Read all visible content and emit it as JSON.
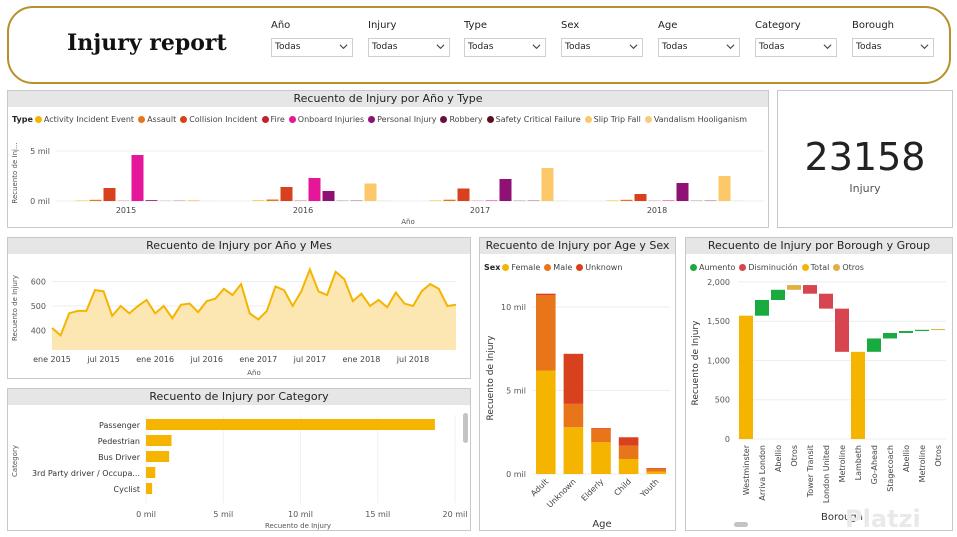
{
  "header": {
    "title": "Injury report",
    "filters": [
      {
        "label": "Año",
        "value": "Todas"
      },
      {
        "label": "Injury",
        "value": "Todas"
      },
      {
        "label": "Type",
        "value": "Todas"
      },
      {
        "label": "Sex",
        "value": "Todas"
      },
      {
        "label": "Age",
        "value": "Todas"
      },
      {
        "label": "Category",
        "value": "Todas"
      },
      {
        "label": "Borough",
        "value": "Todas"
      }
    ]
  },
  "kpi": {
    "value": "23158",
    "label": "Injury"
  },
  "watermark": "Platzi",
  "chart_data": [
    {
      "id": "by-year-type",
      "type": "bar",
      "title": "Recuento de Injury por Año y Type",
      "legend_title": "Type",
      "xlabel": "Año",
      "ylabel": "Recuento de Inj...",
      "ylim": [
        0,
        5600
      ],
      "yticks": [
        {
          "v": 0,
          "label": "0 mil"
        },
        {
          "v": 5000,
          "label": "5 mil"
        }
      ],
      "categories": [
        "2015",
        "2016",
        "2017",
        "2018"
      ],
      "series": [
        {
          "name": "Activity Incident Event",
          "color": "#f4b400",
          "values": [
            40,
            60,
            45,
            45
          ]
        },
        {
          "name": "Assault",
          "color": "#e8751a",
          "values": [
            120,
            150,
            130,
            120
          ]
        },
        {
          "name": "Collision Incident",
          "color": "#d9411e",
          "values": [
            1300,
            1400,
            1250,
            700
          ]
        },
        {
          "name": "Fire",
          "color": "#c81d2f",
          "values": [
            20,
            30,
            20,
            20
          ]
        },
        {
          "name": "Onboard Injuries",
          "color": "#e6169a",
          "values": [
            4600,
            2300,
            50,
            50
          ]
        },
        {
          "name": "Personal Injury",
          "color": "#8e1173",
          "values": [
            80,
            1000,
            2200,
            1800
          ]
        },
        {
          "name": "Robbery",
          "color": "#6b0f3a",
          "values": [
            10,
            20,
            20,
            20
          ]
        },
        {
          "name": "Safety Critical Failure",
          "color": "#5a0f1e",
          "values": [
            20,
            30,
            30,
            30
          ]
        },
        {
          "name": "Slip Trip Fall",
          "color": "#fcc86a",
          "values": [
            80,
            1750,
            3300,
            2500
          ]
        },
        {
          "name": "Vandalism Hooliganism",
          "color": "#fbc97e",
          "values": [
            10,
            20,
            20,
            20
          ]
        }
      ]
    },
    {
      "id": "by-month",
      "type": "area",
      "title": "Recuento de Injury por Año y Mes",
      "xlabel": "Año",
      "ylabel": "Recuento de Injury",
      "ylim": [
        320,
        680
      ],
      "yticks": [
        400,
        500,
        600
      ],
      "xticks": [
        {
          "i": 0,
          "label": "ene 2015"
        },
        {
          "i": 6,
          "label": "jul 2015"
        },
        {
          "i": 12,
          "label": "ene 2016"
        },
        {
          "i": 18,
          "label": "jul 2016"
        },
        {
          "i": 24,
          "label": "ene 2017"
        },
        {
          "i": 30,
          "label": "jul 2017"
        },
        {
          "i": 36,
          "label": "ene 2018"
        },
        {
          "i": 42,
          "label": "jul 2018"
        }
      ],
      "color": "#f4b400",
      "values": [
        410,
        380,
        470,
        480,
        480,
        565,
        560,
        460,
        500,
        470,
        500,
        525,
        470,
        500,
        450,
        505,
        510,
        475,
        520,
        530,
        570,
        545,
        590,
        470,
        445,
        480,
        580,
        565,
        500,
        560,
        650,
        560,
        545,
        640,
        610,
        520,
        550,
        500,
        525,
        495,
        555,
        510,
        500,
        560,
        590,
        570,
        500,
        505
      ]
    },
    {
      "id": "by-category",
      "type": "bar",
      "orientation": "horizontal",
      "title": "Recuento de Injury por Category",
      "xlabel": "Recuento de Injury",
      "ylabel": "Category",
      "xlim": [
        0,
        20000
      ],
      "xticks": [
        {
          "v": 0,
          "label": "0 mil"
        },
        {
          "v": 5000,
          "label": "5 mil"
        },
        {
          "v": 10000,
          "label": "10 mil"
        },
        {
          "v": 15000,
          "label": "15 mil"
        },
        {
          "v": 20000,
          "label": "20 mil"
        }
      ],
      "categories": [
        "Passenger",
        "Pedestrian",
        "Bus Driver",
        "3rd Party driver / Occupa...",
        "Cyclist"
      ],
      "values": [
        18700,
        1650,
        1500,
        600,
        400
      ],
      "color": "#f4b400"
    },
    {
      "id": "by-age-sex",
      "type": "bar",
      "stacked": true,
      "title": "Recuento de Injury por Age y Sex",
      "legend_title": "Sex",
      "xlabel": "Age",
      "ylabel": "Recuento de Injury",
      "ylim": [
        0,
        11500
      ],
      "yticks": [
        {
          "v": 0,
          "label": "0 mil"
        },
        {
          "v": 5000,
          "label": "5 mil"
        },
        {
          "v": 10000,
          "label": "10 mil"
        }
      ],
      "categories": [
        "Adult",
        "Unknown",
        "Elderly",
        "Child",
        "Youth"
      ],
      "series": [
        {
          "name": "Female",
          "color": "#f4b400",
          "values": [
            6200,
            2800,
            1900,
            900,
            150
          ]
        },
        {
          "name": "Male",
          "color": "#e8751a",
          "values": [
            4500,
            1400,
            800,
            800,
            150
          ]
        },
        {
          "name": "Unknown",
          "color": "#d9411e",
          "values": [
            100,
            3000,
            50,
            500,
            50
          ]
        }
      ]
    },
    {
      "id": "by-borough",
      "type": "waterfall",
      "title": "Recuento de Injury por Borough y Group",
      "xlabel": "Borough",
      "ylabel": "Recuento de Injury",
      "ylim": [
        0,
        2050
      ],
      "yticks": [
        {
          "v": 0,
          "label": "0"
        },
        {
          "v": 500,
          "label": "500"
        },
        {
          "v": 1000,
          "label": "1,000"
        },
        {
          "v": 1500,
          "label": "1,500"
        },
        {
          "v": 2000,
          "label": "2,000"
        }
      ],
      "legend": [
        {
          "name": "Aumento",
          "color": "#1aab40"
        },
        {
          "name": "Disminución",
          "color": "#d64550"
        },
        {
          "name": "Total",
          "color": "#f4b400"
        },
        {
          "name": "Otros",
          "color": "#e0b040"
        }
      ],
      "steps": [
        {
          "label": "Westminster",
          "kind": "total",
          "start": 0,
          "end": 1570
        },
        {
          "label": "Arriva London",
          "kind": "increase",
          "start": 1570,
          "end": 1770
        },
        {
          "label": "Abellio",
          "kind": "increase",
          "start": 1770,
          "end": 1900
        },
        {
          "label": "Otros",
          "kind": "other",
          "start": 1900,
          "end": 1960
        },
        {
          "label": "Tower Transit",
          "kind": "decrease",
          "start": 1960,
          "end": 1850
        },
        {
          "label": "London United",
          "kind": "decrease",
          "start": 1850,
          "end": 1660
        },
        {
          "label": "Metroline",
          "kind": "decrease",
          "start": 1660,
          "end": 1110
        },
        {
          "label": "Lambeth",
          "kind": "total",
          "start": 0,
          "end": 1110
        },
        {
          "label": "Go-Ahead",
          "kind": "increase",
          "start": 1110,
          "end": 1280
        },
        {
          "label": "Stagecoach",
          "kind": "increase",
          "start": 1280,
          "end": 1350
        },
        {
          "label": "Abellio",
          "kind": "increase",
          "start": 1350,
          "end": 1375
        },
        {
          "label": "Metroline",
          "kind": "increase",
          "start": 1375,
          "end": 1390
        },
        {
          "label": "Otros",
          "kind": "other",
          "start": 1390,
          "end": 1400
        }
      ]
    }
  ]
}
